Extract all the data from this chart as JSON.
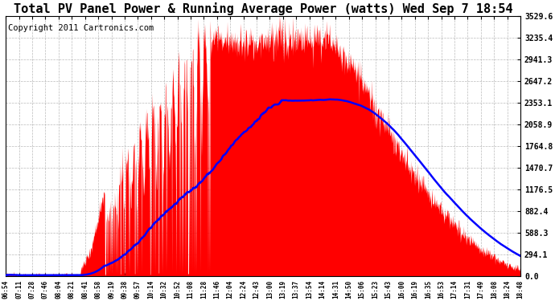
{
  "title": "Total PV Panel Power & Running Average Power (watts) Wed Sep 7 18:54",
  "copyright": "Copyright 2011 Cartronics.com",
  "y_max": 3529.6,
  "y_min": 0.0,
  "y_ticks": [
    0.0,
    294.1,
    588.3,
    882.4,
    1176.5,
    1470.7,
    1764.8,
    2058.9,
    2353.1,
    2647.2,
    2941.3,
    3235.4,
    3529.6
  ],
  "x_labels": [
    "06:54",
    "07:11",
    "07:28",
    "07:46",
    "08:04",
    "08:21",
    "08:41",
    "08:58",
    "09:19",
    "09:38",
    "09:57",
    "10:14",
    "10:32",
    "10:52",
    "11:08",
    "11:28",
    "11:46",
    "12:04",
    "12:24",
    "12:43",
    "13:00",
    "13:19",
    "13:37",
    "13:54",
    "14:14",
    "14:31",
    "14:50",
    "15:06",
    "15:23",
    "15:43",
    "16:00",
    "16:19",
    "16:35",
    "16:53",
    "17:14",
    "17:31",
    "17:49",
    "18:08",
    "18:24",
    "18:48"
  ],
  "background_color": "#ffffff",
  "fill_color": "#ff0000",
  "line_color": "#0000ff",
  "grid_color": "#aaaaaa",
  "title_fontsize": 11,
  "copyright_fontsize": 7.5
}
